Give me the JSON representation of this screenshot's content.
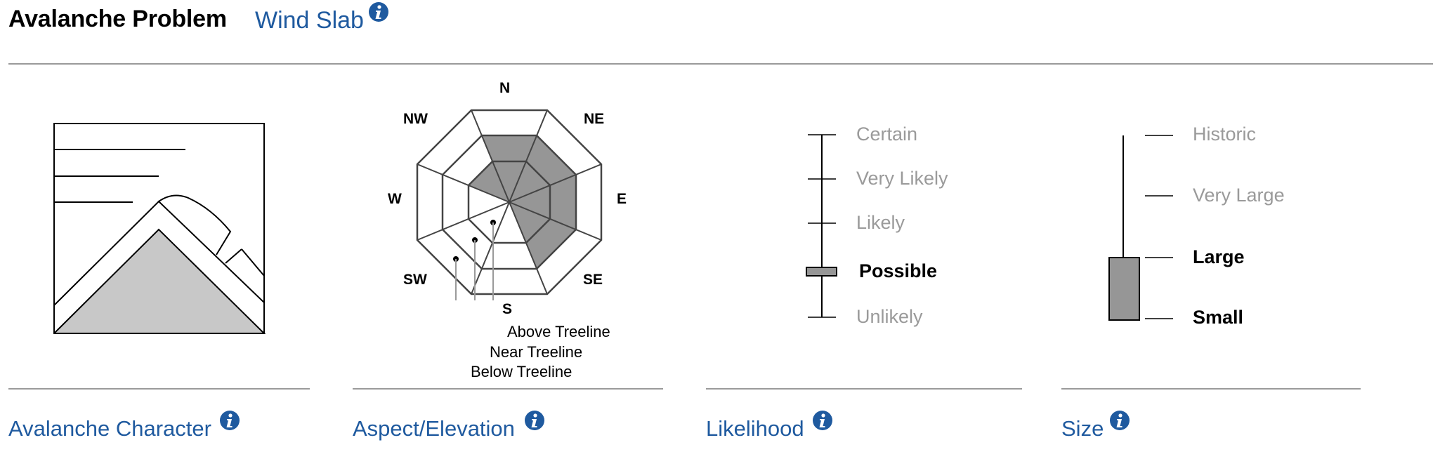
{
  "header": {
    "title": "Avalanche Problem",
    "problem_type": "Wind Slab"
  },
  "panels": {
    "character": {
      "label": "Avalanche Character"
    },
    "aspect": {
      "label": "Aspect/Elevation",
      "compass": {
        "n": "N",
        "ne": "NE",
        "e": "E",
        "se": "SE",
        "s": "S",
        "sw": "SW",
        "w": "W",
        "nw": "NW"
      },
      "elevations": {
        "above": "Above Treeline",
        "near": "Near Treeline",
        "below": "Below Treeline"
      },
      "fill_color": "#969696"
    },
    "likelihood": {
      "label": "Likelihood",
      "levels": [
        "Certain",
        "Very Likely",
        "Likely",
        "Possible",
        "Unlikely"
      ],
      "selected": "Possible"
    },
    "size": {
      "label": "Size",
      "levels": [
        "Historic",
        "Very Large",
        "Large",
        "Small"
      ],
      "range": [
        "Small",
        "Large"
      ]
    }
  },
  "colors": {
    "link": "#1f5a9f",
    "muted_text": "#9a9a9a",
    "rule": "#9a9a9a",
    "fill": "#969696",
    "info_icon": "#1f5a9f"
  }
}
